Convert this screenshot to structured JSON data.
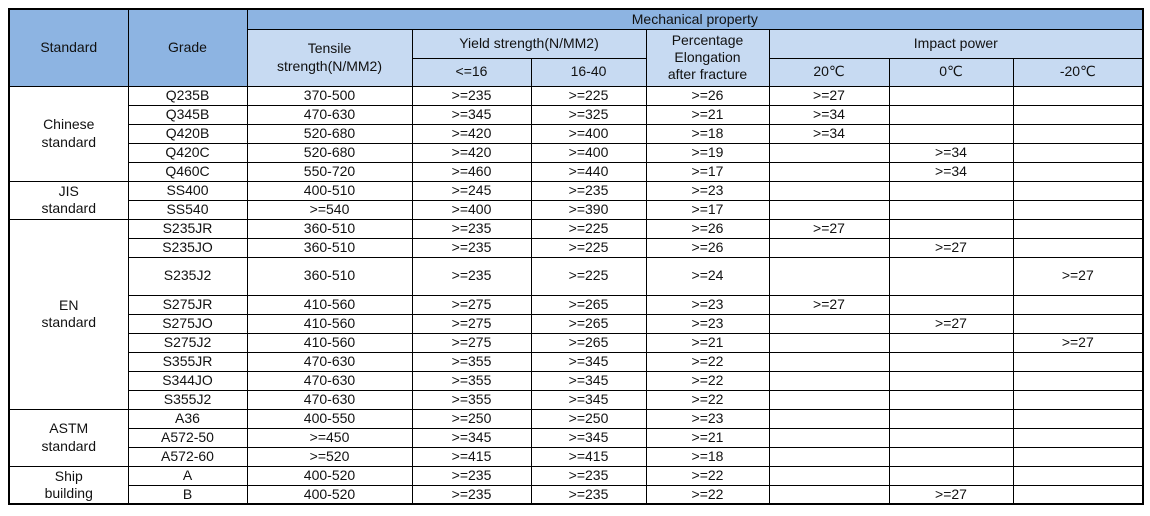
{
  "colors": {
    "header_dark": "#8DB4E2",
    "header_light": "#C7DAF2",
    "grid": "#000000"
  },
  "table": {
    "header": {
      "standard": "Standard",
      "grade": "Grade",
      "mechanical_property": "Mechanical property",
      "tensile": "Tensile\nstrength(N/MM2)",
      "yield": "Yield strength(N/MM2)",
      "yield_sub": [
        "<=16",
        "16-40"
      ],
      "elongation": "Percentage\nElongation\nafter fracture",
      "impact": "Impact power",
      "impact_sub": [
        "20℃",
        "0℃",
        "-20℃"
      ]
    },
    "groups": [
      {
        "standard": "Chinese\nstandard",
        "rows": [
          {
            "grade": "Q235B",
            "tensile": "370-500",
            "yield_16": ">=235",
            "yield_40": ">=225",
            "elongation": ">=26",
            "impact_20": ">=27",
            "impact_0": "",
            "impact_m20": ""
          },
          {
            "grade": "Q345B",
            "tensile": "470-630",
            "yield_16": ">=345",
            "yield_40": ">=325",
            "elongation": ">=21",
            "impact_20": ">=34",
            "impact_0": "",
            "impact_m20": ""
          },
          {
            "grade": "Q420B",
            "tensile": "520-680",
            "yield_16": ">=420",
            "yield_40": ">=400",
            "elongation": ">=18",
            "impact_20": ">=34",
            "impact_0": "",
            "impact_m20": ""
          },
          {
            "grade": "Q420C",
            "tensile": "520-680",
            "yield_16": ">=420",
            "yield_40": ">=400",
            "elongation": ">=19",
            "impact_20": "",
            "impact_0": ">=34",
            "impact_m20": ""
          },
          {
            "grade": "Q460C",
            "tensile": "550-720",
            "yield_16": ">=460",
            "yield_40": ">=440",
            "elongation": ">=17",
            "impact_20": "",
            "impact_0": ">=34",
            "impact_m20": ""
          }
        ]
      },
      {
        "standard": "JIS\nstandard",
        "rows": [
          {
            "grade": "SS400",
            "tensile": "400-510",
            "yield_16": ">=245",
            "yield_40": ">=235",
            "elongation": ">=23",
            "impact_20": "",
            "impact_0": "",
            "impact_m20": ""
          },
          {
            "grade": "SS540",
            "tensile": ">=540",
            "yield_16": ">=400",
            "yield_40": ">=390",
            "elongation": ">=17",
            "impact_20": "",
            "impact_0": "",
            "impact_m20": ""
          }
        ]
      },
      {
        "standard": "EN\nstandard",
        "rows": [
          {
            "grade": "S235JR",
            "tensile": "360-510",
            "yield_16": ">=235",
            "yield_40": ">=225",
            "elongation": ">=26",
            "impact_20": ">=27",
            "impact_0": "",
            "impact_m20": ""
          },
          {
            "grade": "S235JO",
            "tensile": "360-510",
            "yield_16": ">=235",
            "yield_40": ">=225",
            "elongation": ">=26",
            "impact_20": "",
            "impact_0": ">=27",
            "impact_m20": ""
          },
          {
            "grade": "S235J2",
            "tensile": "360-510",
            "yield_16": ">=235",
            "yield_40": ">=225",
            "elongation": ">=24",
            "impact_20": "",
            "impact_0": "",
            "impact_m20": ">=27",
            "tall": true
          },
          {
            "grade": "S275JR",
            "tensile": "410-560",
            "yield_16": ">=275",
            "yield_40": ">=265",
            "elongation": ">=23",
            "impact_20": ">=27",
            "impact_0": "",
            "impact_m20": ""
          },
          {
            "grade": "S275JO",
            "tensile": "410-560",
            "yield_16": ">=275",
            "yield_40": ">=265",
            "elongation": ">=23",
            "impact_20": "",
            "impact_0": ">=27",
            "impact_m20": ""
          },
          {
            "grade": "S275J2",
            "tensile": "410-560",
            "yield_16": ">=275",
            "yield_40": ">=265",
            "elongation": ">=21",
            "impact_20": "",
            "impact_0": "",
            "impact_m20": ">=27"
          },
          {
            "grade": "S355JR",
            "tensile": "470-630",
            "yield_16": ">=355",
            "yield_40": ">=345",
            "elongation": ">=22",
            "impact_20": "",
            "impact_0": "",
            "impact_m20": ""
          },
          {
            "grade": "S344JO",
            "tensile": "470-630",
            "yield_16": ">=355",
            "yield_40": ">=345",
            "elongation": ">=22",
            "impact_20": "",
            "impact_0": "",
            "impact_m20": ""
          },
          {
            "grade": "S355J2",
            "tensile": "470-630",
            "yield_16": ">=355",
            "yield_40": ">=345",
            "elongation": ">=22",
            "impact_20": "",
            "impact_0": "",
            "impact_m20": ""
          }
        ]
      },
      {
        "standard": "ASTM\nstandard",
        "rows": [
          {
            "grade": "A36",
            "tensile": "400-550",
            "yield_16": ">=250",
            "yield_40": ">=250",
            "elongation": ">=23",
            "impact_20": "",
            "impact_0": "",
            "impact_m20": ""
          },
          {
            "grade": "A572-50",
            "tensile": ">=450",
            "yield_16": ">=345",
            "yield_40": ">=345",
            "elongation": ">=21",
            "impact_20": "",
            "impact_0": "",
            "impact_m20": ""
          },
          {
            "grade": "A572-60",
            "tensile": ">=520",
            "yield_16": ">=415",
            "yield_40": ">=415",
            "elongation": ">=18",
            "impact_20": "",
            "impact_0": "",
            "impact_m20": ""
          }
        ]
      },
      {
        "standard": "Ship\nbuilding",
        "rows": [
          {
            "grade": "A",
            "tensile": "400-520",
            "yield_16": ">=235",
            "yield_40": ">=235",
            "elongation": ">=22",
            "impact_20": "",
            "impact_0": "",
            "impact_m20": ""
          },
          {
            "grade": "B",
            "tensile": "400-520",
            "yield_16": ">=235",
            "yield_40": ">=235",
            "elongation": ">=22",
            "impact_20": "",
            "impact_0": ">=27",
            "impact_m20": ""
          }
        ]
      }
    ]
  }
}
